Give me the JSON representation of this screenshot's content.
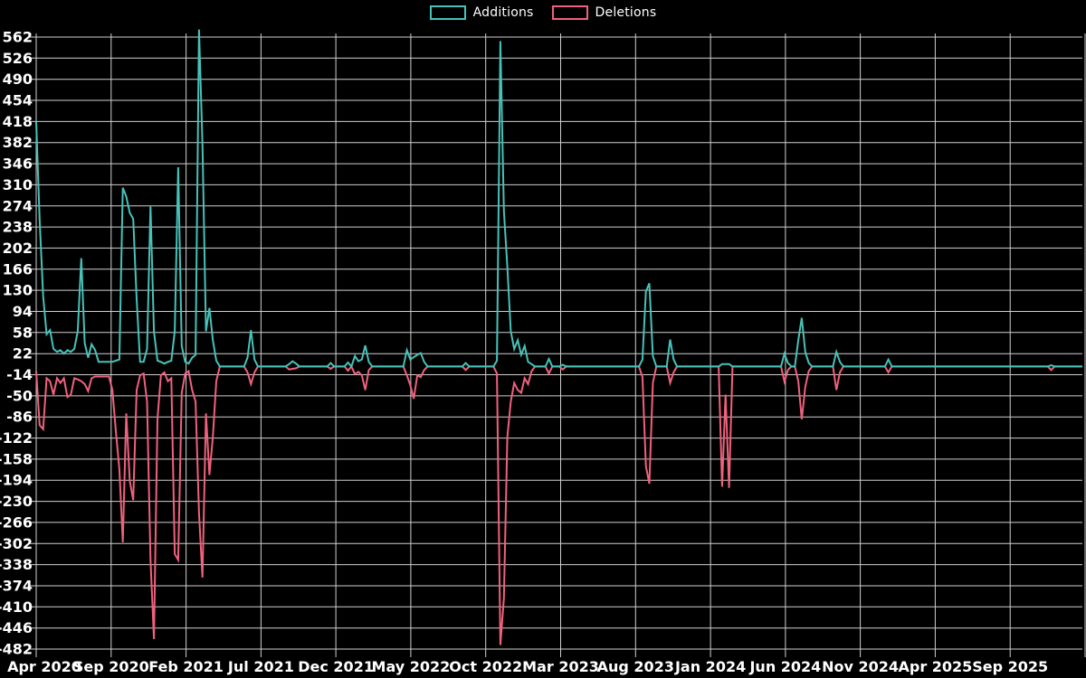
{
  "legend": {
    "items": [
      {
        "label": "Additions",
        "color": "#46C2B9"
      },
      {
        "label": "Deletions",
        "color": "#F0617E"
      }
    ]
  },
  "colors": {
    "background": "#000000",
    "grid": "#cfcfcf",
    "text": "#ffffff",
    "additions": "#46C2B9",
    "deletions": "#F0617E"
  },
  "chart_data": {
    "type": "line",
    "title": "",
    "legend_position": "top-center",
    "grid": true,
    "x": {
      "unit": "week",
      "count": 303,
      "labels": [
        "Apr 2020",
        "Sep 2020",
        "Feb 2021",
        "Jul 2021",
        "Dec 2021",
        "May 2022",
        "Oct 2022",
        "Mar 2023",
        "Aug 2023",
        "Jan 2024",
        "Jun 2024",
        "Nov 2024",
        "Apr 2025",
        "Sep 2025"
      ],
      "vertical_gridline_count": 15
    },
    "y": {
      "min": -482,
      "max": 562,
      "tick_step": 36,
      "ticks": [
        562,
        526,
        490,
        454,
        418,
        382,
        346,
        310,
        274,
        238,
        202,
        166,
        130,
        94,
        58,
        22,
        -14,
        -50,
        -86,
        -122,
        -158,
        -194,
        -230,
        -266,
        -302,
        -338,
        -374,
        -410,
        -446,
        -482
      ]
    },
    "series": [
      {
        "name": "Additions",
        "color": "#46C2B9",
        "default_value": 0,
        "sparse_points": [
          [
            0,
            418
          ],
          [
            1,
            250
          ],
          [
            2,
            120
          ],
          [
            3,
            55
          ],
          [
            4,
            62
          ],
          [
            5,
            30
          ],
          [
            6,
            25
          ],
          [
            7,
            28
          ],
          [
            8,
            22
          ],
          [
            9,
            28
          ],
          [
            10,
            25
          ],
          [
            11,
            30
          ],
          [
            12,
            60
          ],
          [
            13,
            185
          ],
          [
            14,
            40
          ],
          [
            15,
            15
          ],
          [
            16,
            38
          ],
          [
            17,
            28
          ],
          [
            18,
            8
          ],
          [
            19,
            8
          ],
          [
            20,
            8
          ],
          [
            21,
            8
          ],
          [
            22,
            8
          ],
          [
            23,
            10
          ],
          [
            24,
            12
          ],
          [
            25,
            305
          ],
          [
            26,
            290
          ],
          [
            27,
            262
          ],
          [
            28,
            252
          ],
          [
            29,
            115
          ],
          [
            30,
            8
          ],
          [
            31,
            8
          ],
          [
            32,
            30
          ],
          [
            33,
            273
          ],
          [
            34,
            60
          ],
          [
            35,
            10
          ],
          [
            36,
            8
          ],
          [
            37,
            5
          ],
          [
            38,
            8
          ],
          [
            39,
            10
          ],
          [
            40,
            60
          ],
          [
            41,
            340
          ],
          [
            42,
            35
          ],
          [
            43,
            8
          ],
          [
            44,
            5
          ],
          [
            45,
            15
          ],
          [
            46,
            20
          ],
          [
            47,
            575
          ],
          [
            48,
            380
          ],
          [
            49,
            60
          ],
          [
            50,
            100
          ],
          [
            51,
            45
          ],
          [
            52,
            10
          ],
          [
            61,
            15
          ],
          [
            62,
            62
          ],
          [
            63,
            12
          ],
          [
            73,
            4
          ],
          [
            74,
            9
          ],
          [
            75,
            5
          ],
          [
            85,
            6
          ],
          [
            90,
            7
          ],
          [
            92,
            18
          ],
          [
            93,
            9
          ],
          [
            94,
            12
          ],
          [
            95,
            36
          ],
          [
            96,
            8
          ],
          [
            107,
            28
          ],
          [
            108,
            12
          ],
          [
            109,
            16
          ],
          [
            110,
            20
          ],
          [
            111,
            23
          ],
          [
            112,
            8
          ],
          [
            124,
            6
          ],
          [
            133,
            10
          ],
          [
            134,
            555
          ],
          [
            135,
            265
          ],
          [
            136,
            170
          ],
          [
            137,
            60
          ],
          [
            138,
            30
          ],
          [
            139,
            45
          ],
          [
            140,
            20
          ],
          [
            141,
            35
          ],
          [
            142,
            8
          ],
          [
            143,
            4
          ],
          [
            148,
            13
          ],
          [
            152,
            3
          ],
          [
            175,
            12
          ],
          [
            176,
            128
          ],
          [
            177,
            142
          ],
          [
            178,
            18
          ],
          [
            183,
            46
          ],
          [
            184,
            12
          ],
          [
            198,
            4
          ],
          [
            199,
            4
          ],
          [
            200,
            4
          ],
          [
            216,
            22
          ],
          [
            217,
            6
          ],
          [
            220,
            45
          ],
          [
            221,
            83
          ],
          [
            222,
            25
          ],
          [
            223,
            6
          ],
          [
            231,
            25
          ],
          [
            232,
            8
          ],
          [
            246,
            12
          ],
          [
            293,
            2
          ]
        ]
      },
      {
        "name": "Deletions",
        "color": "#F0617E",
        "default_value": 0,
        "sparse_points": [
          [
            0,
            -8
          ],
          [
            1,
            -100
          ],
          [
            2,
            -107
          ],
          [
            3,
            -20
          ],
          [
            4,
            -25
          ],
          [
            5,
            -48
          ],
          [
            6,
            -20
          ],
          [
            7,
            -28
          ],
          [
            8,
            -20
          ],
          [
            9,
            -52
          ],
          [
            10,
            -48
          ],
          [
            11,
            -20
          ],
          [
            12,
            -22
          ],
          [
            13,
            -25
          ],
          [
            14,
            -30
          ],
          [
            15,
            -42
          ],
          [
            16,
            -20
          ],
          [
            17,
            -17
          ],
          [
            18,
            -17
          ],
          [
            19,
            -17
          ],
          [
            20,
            -17
          ],
          [
            21,
            -17
          ],
          [
            22,
            -40
          ],
          [
            23,
            -110
          ],
          [
            24,
            -175
          ],
          [
            25,
            -300
          ],
          [
            26,
            -80
          ],
          [
            27,
            -195
          ],
          [
            28,
            -228
          ],
          [
            29,
            -40
          ],
          [
            30,
            -15
          ],
          [
            31,
            -12
          ],
          [
            32,
            -60
          ],
          [
            33,
            -330
          ],
          [
            34,
            -465
          ],
          [
            35,
            -90
          ],
          [
            36,
            -15
          ],
          [
            37,
            -10
          ],
          [
            38,
            -25
          ],
          [
            39,
            -20
          ],
          [
            40,
            -320
          ],
          [
            41,
            -330
          ],
          [
            42,
            -45
          ],
          [
            43,
            -12
          ],
          [
            44,
            -8
          ],
          [
            45,
            -40
          ],
          [
            46,
            -60
          ],
          [
            47,
            -250
          ],
          [
            48,
            -360
          ],
          [
            49,
            -80
          ],
          [
            50,
            -185
          ],
          [
            51,
            -120
          ],
          [
            52,
            -25
          ],
          [
            61,
            -10
          ],
          [
            62,
            -30
          ],
          [
            63,
            -10
          ],
          [
            73,
            -5
          ],
          [
            74,
            -4
          ],
          [
            75,
            -3
          ],
          [
            85,
            -4
          ],
          [
            90,
            -7
          ],
          [
            92,
            -13
          ],
          [
            93,
            -9
          ],
          [
            94,
            -15
          ],
          [
            95,
            -40
          ],
          [
            96,
            -6
          ],
          [
            107,
            -15
          ],
          [
            108,
            -32
          ],
          [
            109,
            -55
          ],
          [
            110,
            -15
          ],
          [
            111,
            -18
          ],
          [
            112,
            -6
          ],
          [
            124,
            -6
          ],
          [
            133,
            -12
          ],
          [
            134,
            -475
          ],
          [
            135,
            -395
          ],
          [
            136,
            -120
          ],
          [
            137,
            -60
          ],
          [
            138,
            -28
          ],
          [
            139,
            -40
          ],
          [
            140,
            -45
          ],
          [
            141,
            -20
          ],
          [
            142,
            -30
          ],
          [
            143,
            -8
          ],
          [
            148,
            -12
          ],
          [
            152,
            -5
          ],
          [
            175,
            -18
          ],
          [
            176,
            -170
          ],
          [
            177,
            -200
          ],
          [
            178,
            -28
          ],
          [
            183,
            -28
          ],
          [
            184,
            -10
          ],
          [
            198,
            -205
          ],
          [
            199,
            -48
          ],
          [
            200,
            -207
          ],
          [
            216,
            -26
          ],
          [
            217,
            -6
          ],
          [
            220,
            -25
          ],
          [
            221,
            -90
          ],
          [
            222,
            -35
          ],
          [
            223,
            -8
          ],
          [
            231,
            -40
          ],
          [
            232,
            -10
          ],
          [
            246,
            -10
          ],
          [
            293,
            -6
          ]
        ]
      }
    ]
  }
}
